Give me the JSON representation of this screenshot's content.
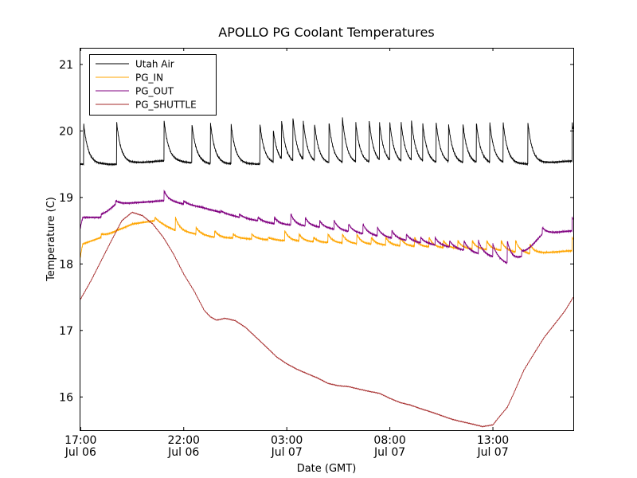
{
  "chart_data": {
    "type": "line",
    "title": "APOLLO PG Coolant Temperatures",
    "xlabel": "Date (GMT)",
    "ylabel": "Temperature (C)",
    "xlim": [
      16.95,
      40.9
    ],
    "ylim": [
      15.5,
      21.25
    ],
    "grid": false,
    "legend_position": "top-left",
    "yticks": [
      16,
      17,
      18,
      19,
      20,
      21
    ],
    "xticks": [
      {
        "x": 17,
        "time": "17:00",
        "date": "Jul 06"
      },
      {
        "x": 22,
        "time": "22:00",
        "date": "Jul 06"
      },
      {
        "x": 27,
        "time": "03:00",
        "date": "Jul 07"
      },
      {
        "x": 32,
        "time": "08:00",
        "date": "Jul 07"
      },
      {
        "x": 37,
        "time": "13:00",
        "date": "Jul 07"
      }
    ],
    "series": [
      {
        "name": "Utah Air",
        "color": "#000000",
        "style": "sawtooth",
        "spike_times": [
          17.15,
          18.75,
          21.05,
          22.4,
          23.3,
          24.3,
          25.7,
          26.35,
          26.75,
          27.3,
          27.8,
          28.35,
          29.05,
          29.7,
          30.35,
          31,
          31.5,
          32,
          32.55,
          33.05,
          33.6,
          34.25,
          34.85,
          35.55,
          36.2,
          36.85,
          37.5,
          38.7,
          40.85
        ],
        "spike_peaks": [
          20.1,
          20.12,
          20.15,
          20.1,
          20.12,
          20.1,
          20.1,
          20.0,
          20.15,
          20.2,
          20.15,
          20.1,
          20.12,
          20.2,
          20.12,
          20.15,
          20.12,
          20.12,
          20.12,
          20.15,
          20.1,
          20.12,
          20.1,
          20.1,
          20.12,
          20.12,
          20.12,
          20.12,
          20.12
        ],
        "baseline": {
          "x": [
            16.95,
            18.75,
            21.05,
            23.3,
            26.35,
            29.0,
            31.5,
            35.5,
            37.5,
            38.7,
            40.9
          ],
          "y": [
            19.5,
            19.5,
            19.55,
            19.5,
            19.5,
            19.5,
            19.5,
            19.5,
            19.5,
            19.5,
            19.55
          ]
        }
      },
      {
        "name": "PG_IN",
        "color": "#ffa500",
        "style": "sawtooth",
        "spike_times": [
          18.0,
          19.5,
          20.6,
          21.6,
          22.6,
          23.5,
          24.4,
          25.3,
          26.1,
          26.9,
          27.6,
          28.3,
          29.0,
          29.7,
          30.4,
          31.1,
          31.8,
          32.5,
          33.2,
          33.9,
          34.6,
          35.3,
          36.0,
          36.7,
          37.4,
          38.1,
          38.8,
          40.85
        ],
        "spike_peaks": [
          18.45,
          18.6,
          18.7,
          18.7,
          18.55,
          18.5,
          18.45,
          18.45,
          18.4,
          18.5,
          18.45,
          18.4,
          18.45,
          18.45,
          18.45,
          18.4,
          18.4,
          18.4,
          18.4,
          18.4,
          18.35,
          18.35,
          18.35,
          18.35,
          18.35,
          18.35,
          18.3,
          18.4
        ],
        "baseline": {
          "x": [
            16.95,
            17.1,
            18.0,
            19.5,
            20.6,
            21.6,
            23.5,
            26.9,
            30.4,
            33.9,
            37.4,
            38.8,
            40.9
          ],
          "y": [
            18.05,
            18.3,
            18.4,
            18.6,
            18.65,
            18.5,
            18.4,
            18.35,
            18.3,
            18.25,
            18.2,
            18.15,
            18.2
          ]
        }
      },
      {
        "name": "PG_OUT",
        "color": "#800080",
        "style": "sawtooth",
        "spike_times": [
          18.0,
          18.7,
          21.05,
          22.0,
          22.9,
          23.8,
          24.7,
          25.6,
          26.4,
          27.2,
          27.9,
          28.6,
          29.3,
          30.0,
          30.7,
          31.4,
          32.1,
          32.8,
          33.5,
          34.2,
          34.9,
          35.6,
          36.3,
          37.0,
          37.7,
          38.4,
          39.4,
          40.85
        ],
        "spike_peaks": [
          18.75,
          18.95,
          19.1,
          18.95,
          18.85,
          18.8,
          18.75,
          18.7,
          18.7,
          18.75,
          18.7,
          18.65,
          18.65,
          18.6,
          18.6,
          18.55,
          18.5,
          18.45,
          18.4,
          18.4,
          18.35,
          18.35,
          18.35,
          18.3,
          18.35,
          18.2,
          18.55,
          18.7
        ],
        "baseline": {
          "x": [
            16.95,
            17.1,
            18.0,
            18.7,
            21.05,
            22.9,
            24.7,
            26.4,
            28.6,
            30.7,
            32.8,
            34.9,
            36.3,
            37.0,
            37.7,
            38.4,
            39.4,
            40.9
          ],
          "y": [
            18.5,
            18.7,
            18.7,
            18.9,
            18.95,
            18.85,
            18.7,
            18.6,
            18.55,
            18.45,
            18.35,
            18.25,
            18.15,
            18.1,
            18.0,
            18.1,
            18.45,
            18.5
          ]
        }
      },
      {
        "name": "PG_SHUTTLE",
        "color": "#a52a2a",
        "style": "smooth",
        "x": [
          16.95,
          17.5,
          18.0,
          18.5,
          19.0,
          19.5,
          20.0,
          20.5,
          21.0,
          21.5,
          22.0,
          22.5,
          23.0,
          23.3,
          23.6,
          24.0,
          24.5,
          25.0,
          25.5,
          26.0,
          26.5,
          27.0,
          27.5,
          28.0,
          28.5,
          29.0,
          29.5,
          30.0,
          30.5,
          31.0,
          31.5,
          32.0,
          32.5,
          33.0,
          33.5,
          34.0,
          34.5,
          35.0,
          35.5,
          36.0,
          36.5,
          37.0,
          37.3,
          37.7,
          38.0,
          38.5,
          39.0,
          39.5,
          40.0,
          40.5,
          40.9
        ],
        "y": [
          17.45,
          17.75,
          18.05,
          18.35,
          18.65,
          18.78,
          18.73,
          18.6,
          18.4,
          18.15,
          17.85,
          17.6,
          17.3,
          17.2,
          17.15,
          17.18,
          17.15,
          17.05,
          16.9,
          16.75,
          16.6,
          16.5,
          16.42,
          16.35,
          16.28,
          16.2,
          16.17,
          16.16,
          16.12,
          16.08,
          16.05,
          15.98,
          15.92,
          15.88,
          15.82,
          15.77,
          15.72,
          15.67,
          15.63,
          15.59,
          15.55,
          15.58,
          15.7,
          15.85,
          16.05,
          16.4,
          16.65,
          16.9,
          17.1,
          17.3,
          17.5
        ]
      }
    ]
  }
}
